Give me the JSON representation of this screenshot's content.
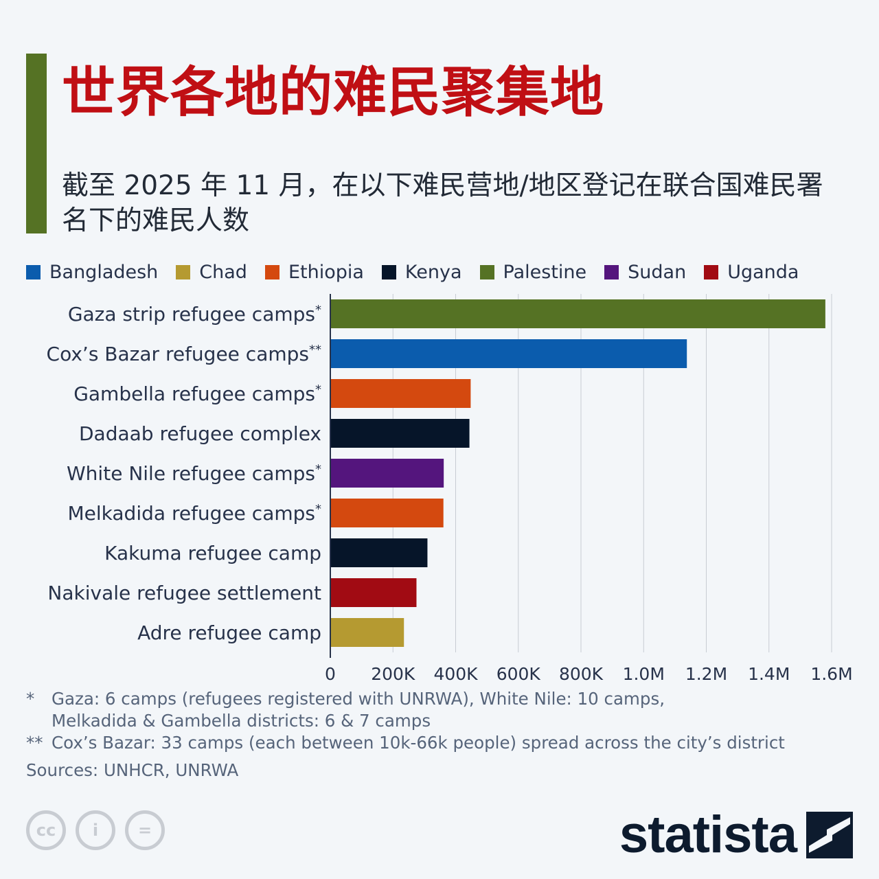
{
  "header": {
    "title": "世界各地的难民聚集地",
    "subtitle": "截至 2025 年 11 月，在以下难民营地/地区登记在联合国难民署名下的难民人数"
  },
  "legend": [
    {
      "label": "Bangladesh",
      "color": "#0b5cad"
    },
    {
      "label": "Chad",
      "color": "#b59a31"
    },
    {
      "label": "Ethiopia",
      "color": "#d4490f"
    },
    {
      "label": "Kenya",
      "color": "#061529"
    },
    {
      "label": "Palestine",
      "color": "#557224"
    },
    {
      "label": "Sudan",
      "color": "#54157d"
    },
    {
      "label": "Uganda",
      "color": "#a10b13"
    }
  ],
  "chart_data": {
    "type": "bar",
    "orientation": "horizontal",
    "categories": [
      "Gaza strip refugee camps*",
      "Cox’s Bazar refugee camps**",
      "Gambella refugee camps*",
      "Dadaab refugee complex",
      "White Nile refugee camps*",
      "Melkadida refugee camps*",
      "Kakuma refugee camp",
      "Nakivale refugee settlement",
      "Adre refugee camp"
    ],
    "values": [
      1580000,
      1138000,
      448000,
      444000,
      362000,
      361000,
      310000,
      275000,
      235000
    ],
    "country": [
      "Palestine",
      "Bangladesh",
      "Ethiopia",
      "Kenya",
      "Sudan",
      "Ethiopia",
      "Kenya",
      "Uganda",
      "Chad"
    ],
    "xlim": [
      0,
      1600000
    ],
    "x_ticks": [
      0,
      200000,
      400000,
      600000,
      800000,
      1000000,
      1200000,
      1400000,
      1600000
    ],
    "x_tick_labels": [
      "0",
      "200K",
      "400K",
      "600K",
      "800K",
      "1.0M",
      "1.2M",
      "1.4M",
      "1.6M"
    ],
    "grid": true,
    "legend_position": "top"
  },
  "footnotes": [
    {
      "mark": "*",
      "text": "Gaza: 6 camps (refugees registered with UNRWA), White Nile: 10 camps, Melkadida & Gambella districts: 6 & 7 camps"
    },
    {
      "mark": "**",
      "text": "Cox’s Bazar: 33 camps (each between 10k-66k people) spread across the city’s district"
    }
  ],
  "sources": "Sources: UNHCR, UNRWA",
  "license_icons": [
    "cc-icon",
    "attribution-icon",
    "no-derivatives-icon"
  ],
  "license_glyphs": [
    "cc",
    "i",
    "="
  ],
  "brand": {
    "name": "statista",
    "logo_icon": "statista-logo-icon"
  }
}
